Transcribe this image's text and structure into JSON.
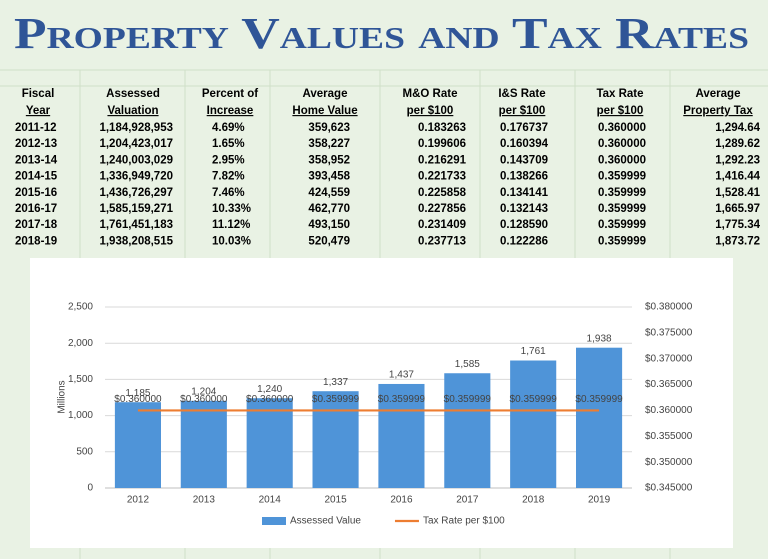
{
  "title": "Property Values and Tax Rates",
  "table": {
    "header": [
      [
        "Fiscal",
        "Year"
      ],
      [
        "Assessed",
        "Valuation"
      ],
      [
        "Percent of",
        "Increase"
      ],
      [
        "Average",
        "Home Value"
      ],
      [
        "M&O Rate",
        "per $100"
      ],
      [
        "I&S Rate",
        "per $100"
      ],
      [
        "Tax Rate",
        "per $100"
      ],
      [
        "Average",
        "Property Tax"
      ]
    ],
    "rows": [
      [
        "2011-12",
        "1,184,928,953",
        "4.69%",
        "359,623",
        "0.183263",
        "0.176737",
        "0.360000",
        "1,294.64"
      ],
      [
        "2012-13",
        "1,204,423,017",
        "1.65%",
        "358,227",
        "0.199606",
        "0.160394",
        "0.360000",
        "1,289.62"
      ],
      [
        "2013-14",
        "1,240,003,029",
        "2.95%",
        "358,952",
        "0.216291",
        "0.143709",
        "0.360000",
        "1,292.23"
      ],
      [
        "2014-15",
        "1,336,949,720",
        "7.82%",
        "393,458",
        "0.221733",
        "0.138266",
        "0.359999",
        "1,416.44"
      ],
      [
        "2015-16",
        "1,436,726,297",
        "7.46%",
        "424,559",
        "0.225858",
        "0.134141",
        "0.359999",
        "1,528.41"
      ],
      [
        "2016-17",
        "1,585,159,271",
        "10.33%",
        "462,770",
        "0.227856",
        "0.132143",
        "0.359999",
        "1,665.97"
      ],
      [
        "2017-18",
        "1,761,451,183",
        "11.12%",
        "493,150",
        "0.231409",
        "0.128590",
        "0.359999",
        "1,775.34"
      ],
      [
        "2018-19",
        "1,938,208,515",
        "10.03%",
        "520,479",
        "0.237713",
        "0.122286",
        "0.359999",
        "1,873.72"
      ]
    ]
  },
  "chart_data": {
    "type": "bar",
    "y_label": "Millions",
    "categories": [
      "2012",
      "2013",
      "2014",
      "2015",
      "2016",
      "2017",
      "2018",
      "2019"
    ],
    "series": [
      {
        "name": "Assessed Value",
        "type": "bar",
        "color": "#4f94d8",
        "values": [
          1185,
          1204,
          1240,
          1337,
          1437,
          1585,
          1761,
          1938
        ],
        "value_labels": [
          "1,185",
          "1,204",
          "1,240",
          "1,337",
          "1,437",
          "1,585",
          "1,761",
          "1,938"
        ]
      },
      {
        "name": "Tax Rate per $100",
        "type": "line",
        "axis": "y2",
        "color": "#ed7d31",
        "values": [
          0.36,
          0.36,
          0.36,
          0.359999,
          0.359999,
          0.359999,
          0.359999,
          0.359999
        ],
        "value_labels": [
          "$0.360000",
          "$0.360000",
          "$0.360000",
          "$0.359999",
          "$0.359999",
          "$0.359999",
          "$0.359999",
          "$0.359999"
        ]
      }
    ],
    "ylim": [
      0,
      2500
    ],
    "yticks": [
      0,
      500,
      {
        "value": 1000,
        "label": "1,000"
      },
      {
        "value": 1500,
        "label": "1,500"
      },
      {
        "value": 2000,
        "label": "2,000"
      },
      {
        "value": 2500,
        "label": "2,500"
      }
    ],
    "y2lim": [
      0.345,
      0.38
    ],
    "y2ticks": [
      {
        "value": 0.345,
        "label": "$0.345000"
      },
      {
        "value": 0.35,
        "label": "$0.350000"
      },
      {
        "value": 0.355,
        "label": "$0.355000"
      },
      {
        "value": 0.36,
        "label": "$0.360000"
      },
      {
        "value": 0.365,
        "label": "$0.365000"
      },
      {
        "value": 0.37,
        "label": "$0.370000"
      },
      {
        "value": 0.375,
        "label": "$0.375000"
      },
      {
        "value": 0.38,
        "label": "$0.380000"
      }
    ],
    "legend": "bottom"
  }
}
